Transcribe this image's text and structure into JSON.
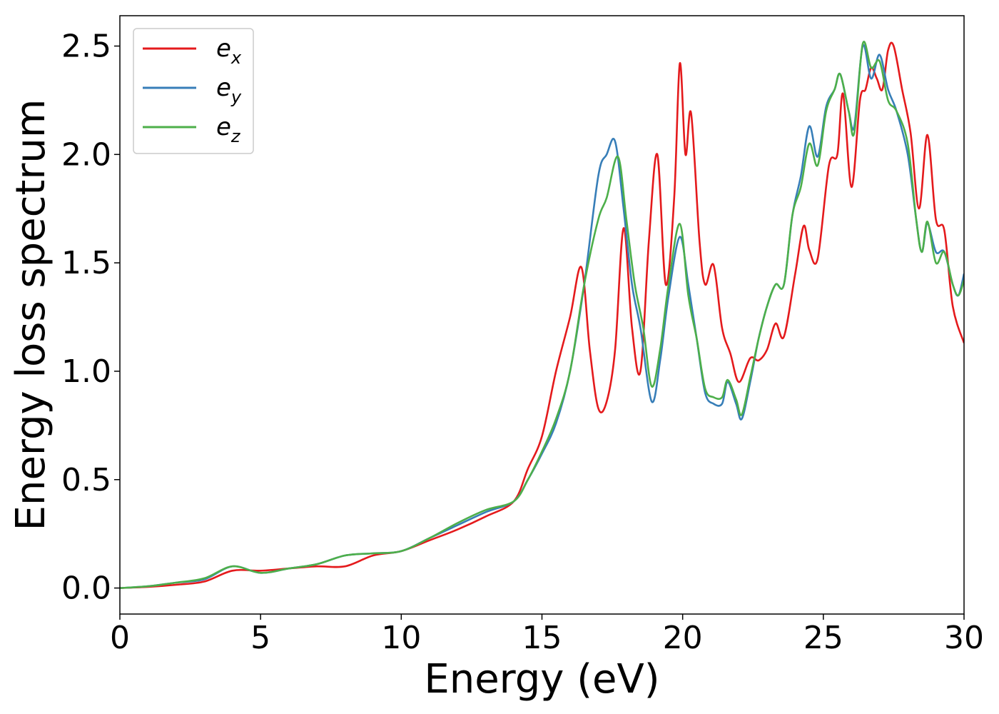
{
  "chart_data": {
    "type": "line",
    "xlabel": "Energy (eV)",
    "ylabel": "Energy loss spectrum",
    "xlim": [
      0,
      30
    ],
    "ylim": [
      -0.12,
      2.64
    ],
    "xticks": [
      "0",
      "5",
      "10",
      "15",
      "20",
      "25",
      "30"
    ],
    "yticks": [
      "0.0",
      "0.5",
      "1.0",
      "1.5",
      "2.0",
      "2.5"
    ],
    "grid": false,
    "legend_placement": "top-left",
    "series": [
      {
        "name": "e_x",
        "base": "e",
        "sub": "x",
        "color": "#e41a1c",
        "points": [
          [
            0,
            0
          ],
          [
            1,
            0.005
          ],
          [
            2,
            0.015
          ],
          [
            3,
            0.03
          ],
          [
            4,
            0.08
          ],
          [
            5,
            0.08
          ],
          [
            6,
            0.09
          ],
          [
            7,
            0.1
          ],
          [
            8,
            0.1
          ],
          [
            9,
            0.15
          ],
          [
            10,
            0.17
          ],
          [
            11,
            0.22
          ],
          [
            12,
            0.27
          ],
          [
            13,
            0.33
          ],
          [
            14,
            0.4
          ],
          [
            14.5,
            0.55
          ],
          [
            15,
            0.7
          ],
          [
            15.5,
            1.0
          ],
          [
            16,
            1.25
          ],
          [
            16.4,
            1.48
          ],
          [
            16.7,
            1.1
          ],
          [
            17,
            0.83
          ],
          [
            17.3,
            0.86
          ],
          [
            17.6,
            1.1
          ],
          [
            17.9,
            1.66
          ],
          [
            18.2,
            1.2
          ],
          [
            18.5,
            1.0
          ],
          [
            18.8,
            1.6
          ],
          [
            19.1,
            2.0
          ],
          [
            19.4,
            1.4
          ],
          [
            19.7,
            1.8
          ],
          [
            19.9,
            2.42
          ],
          [
            20.1,
            2.0
          ],
          [
            20.3,
            2.19
          ],
          [
            20.6,
            1.6
          ],
          [
            20.8,
            1.4
          ],
          [
            21.1,
            1.49
          ],
          [
            21.4,
            1.2
          ],
          [
            21.7,
            1.08
          ],
          [
            22,
            0.95
          ],
          [
            22.4,
            1.06
          ],
          [
            22.7,
            1.05
          ],
          [
            23,
            1.1
          ],
          [
            23.3,
            1.22
          ],
          [
            23.6,
            1.16
          ],
          [
            24,
            1.45
          ],
          [
            24.3,
            1.67
          ],
          [
            24.5,
            1.56
          ],
          [
            24.8,
            1.52
          ],
          [
            25.2,
            1.95
          ],
          [
            25.5,
            2.0
          ],
          [
            25.7,
            2.28
          ],
          [
            26,
            1.85
          ],
          [
            26.3,
            2.25
          ],
          [
            26.5,
            2.3
          ],
          [
            26.7,
            2.4
          ],
          [
            26.9,
            2.35
          ],
          [
            27.1,
            2.3
          ],
          [
            27.3,
            2.48
          ],
          [
            27.5,
            2.5
          ],
          [
            27.8,
            2.3
          ],
          [
            28.1,
            2.1
          ],
          [
            28.4,
            1.75
          ],
          [
            28.7,
            2.09
          ],
          [
            29,
            1.7
          ],
          [
            29.3,
            1.65
          ],
          [
            29.6,
            1.3
          ],
          [
            30,
            1.13
          ]
        ]
      },
      {
        "name": "e_y",
        "base": "e",
        "sub": "y",
        "color": "#377eb8",
        "points": [
          [
            0,
            0
          ],
          [
            1,
            0.008
          ],
          [
            2,
            0.025
          ],
          [
            3,
            0.04
          ],
          [
            4,
            0.1
          ],
          [
            5,
            0.07
          ],
          [
            6,
            0.09
          ],
          [
            7,
            0.11
          ],
          [
            8,
            0.15
          ],
          [
            9,
            0.16
          ],
          [
            10,
            0.17
          ],
          [
            11,
            0.23
          ],
          [
            12,
            0.29
          ],
          [
            13,
            0.35
          ],
          [
            14,
            0.4
          ],
          [
            14.5,
            0.5
          ],
          [
            15,
            0.62
          ],
          [
            15.5,
            0.76
          ],
          [
            16,
            1.0
          ],
          [
            16.5,
            1.4
          ],
          [
            17,
            1.9
          ],
          [
            17.3,
            2.0
          ],
          [
            17.6,
            2.06
          ],
          [
            17.9,
            1.75
          ],
          [
            18.2,
            1.4
          ],
          [
            18.5,
            1.2
          ],
          [
            18.9,
            0.86
          ],
          [
            19.2,
            1.05
          ],
          [
            19.5,
            1.35
          ],
          [
            19.9,
            1.62
          ],
          [
            20.2,
            1.4
          ],
          [
            20.5,
            1.15
          ],
          [
            20.8,
            0.9
          ],
          [
            21.1,
            0.85
          ],
          [
            21.4,
            0.85
          ],
          [
            21.6,
            0.95
          ],
          [
            21.9,
            0.85
          ],
          [
            22.1,
            0.78
          ],
          [
            22.4,
            0.95
          ],
          [
            22.7,
            1.15
          ],
          [
            23,
            1.3
          ],
          [
            23.3,
            1.4
          ],
          [
            23.6,
            1.4
          ],
          [
            23.9,
            1.72
          ],
          [
            24.2,
            1.9
          ],
          [
            24.5,
            2.13
          ],
          [
            24.8,
            1.99
          ],
          [
            25.1,
            2.22
          ],
          [
            25.4,
            2.3
          ],
          [
            25.6,
            2.37
          ],
          [
            25.9,
            2.2
          ],
          [
            26.1,
            2.13
          ],
          [
            26.4,
            2.5
          ],
          [
            26.7,
            2.35
          ],
          [
            27,
            2.46
          ],
          [
            27.3,
            2.3
          ],
          [
            27.6,
            2.2
          ],
          [
            28,
            2.0
          ],
          [
            28.3,
            1.7
          ],
          [
            28.5,
            1.55
          ],
          [
            28.7,
            1.68
          ],
          [
            29.0,
            1.55
          ],
          [
            29.3,
            1.55
          ],
          [
            29.6,
            1.4
          ],
          [
            29.8,
            1.35
          ],
          [
            30,
            1.45
          ]
        ]
      },
      {
        "name": "e_z",
        "base": "e",
        "sub": "z",
        "color": "#4daf4a",
        "points": [
          [
            0,
            0
          ],
          [
            1,
            0.008
          ],
          [
            2,
            0.025
          ],
          [
            3,
            0.045
          ],
          [
            4,
            0.1
          ],
          [
            5,
            0.07
          ],
          [
            6,
            0.09
          ],
          [
            7,
            0.11
          ],
          [
            8,
            0.15
          ],
          [
            9,
            0.16
          ],
          [
            10,
            0.17
          ],
          [
            11,
            0.23
          ],
          [
            12,
            0.3
          ],
          [
            13,
            0.36
          ],
          [
            14,
            0.4
          ],
          [
            14.5,
            0.5
          ],
          [
            15,
            0.63
          ],
          [
            15.5,
            0.78
          ],
          [
            16,
            1.0
          ],
          [
            16.5,
            1.4
          ],
          [
            17,
            1.7
          ],
          [
            17.3,
            1.8
          ],
          [
            17.7,
            1.99
          ],
          [
            18,
            1.7
          ],
          [
            18.3,
            1.4
          ],
          [
            18.6,
            1.2
          ],
          [
            18.9,
            0.93
          ],
          [
            19.2,
            1.1
          ],
          [
            19.5,
            1.4
          ],
          [
            19.9,
            1.68
          ],
          [
            20.2,
            1.35
          ],
          [
            20.5,
            1.15
          ],
          [
            20.8,
            0.92
          ],
          [
            21.1,
            0.88
          ],
          [
            21.4,
            0.88
          ],
          [
            21.6,
            0.96
          ],
          [
            21.9,
            0.87
          ],
          [
            22.1,
            0.8
          ],
          [
            22.4,
            0.97
          ],
          [
            22.7,
            1.15
          ],
          [
            23,
            1.3
          ],
          [
            23.3,
            1.4
          ],
          [
            23.6,
            1.4
          ],
          [
            23.9,
            1.72
          ],
          [
            24.2,
            1.85
          ],
          [
            24.5,
            2.05
          ],
          [
            24.8,
            1.95
          ],
          [
            25.1,
            2.2
          ],
          [
            25.4,
            2.3
          ],
          [
            25.6,
            2.37
          ],
          [
            25.9,
            2.2
          ],
          [
            26.1,
            2.1
          ],
          [
            26.4,
            2.51
          ],
          [
            26.7,
            2.4
          ],
          [
            27,
            2.43
          ],
          [
            27.3,
            2.25
          ],
          [
            27.6,
            2.2
          ],
          [
            28,
            2.05
          ],
          [
            28.3,
            1.7
          ],
          [
            28.5,
            1.55
          ],
          [
            28.7,
            1.69
          ],
          [
            29.0,
            1.5
          ],
          [
            29.3,
            1.55
          ],
          [
            29.6,
            1.4
          ],
          [
            29.8,
            1.35
          ],
          [
            30,
            1.42
          ]
        ]
      }
    ]
  }
}
